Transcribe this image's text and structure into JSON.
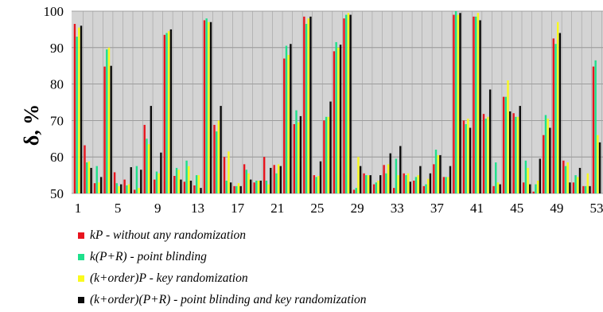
{
  "chart_data": {
    "type": "bar",
    "xlabel": "",
    "ylabel": "δ, %",
    "ylim": [
      50,
      100
    ],
    "y_ticks": [
      "50",
      "60",
      "70",
      "80",
      "90",
      "100"
    ],
    "x_tick_labels": [
      "1",
      "5",
      "9",
      "13",
      "17",
      "21",
      "25",
      "29",
      "33",
      "37",
      "41",
      "45",
      "49",
      "53"
    ],
    "x_tick_indices": [
      1,
      5,
      9,
      13,
      17,
      21,
      25,
      29,
      33,
      37,
      41,
      45,
      49,
      53
    ],
    "categories": [
      1,
      2,
      3,
      4,
      5,
      6,
      7,
      8,
      9,
      10,
      11,
      12,
      13,
      14,
      15,
      16,
      17,
      18,
      19,
      20,
      21,
      22,
      23,
      24,
      25,
      26,
      27,
      28,
      29,
      30,
      31,
      32,
      33,
      34,
      35,
      36,
      37,
      38,
      39,
      40,
      41,
      42,
      43,
      44,
      45,
      46,
      47,
      48,
      49,
      50,
      51,
      52,
      53
    ],
    "grid": true,
    "legend_position": "bottom",
    "background": "#d4d4d4",
    "series": [
      {
        "name": "kP - without any randomization",
        "color": "#e8141e",
        "values": [
          96.5,
          63.2,
          52.8,
          84.8,
          55.8,
          53.8,
          51.0,
          68.8,
          53.8,
          93.5,
          54.8,
          53.2,
          52.2,
          97.5,
          68.8,
          60.0,
          52.0,
          58.0,
          53.0,
          60.0,
          57.8,
          87.0,
          69.0,
          98.5,
          55.0,
          70.0,
          89.0,
          98.0,
          51.0,
          55.5,
          52.5,
          57.8,
          51.5,
          55.5,
          53.5,
          52.0,
          58.0,
          54.5,
          99.0,
          70.0,
          98.5,
          71.8,
          52.0,
          76.5,
          72.0,
          53.0,
          50.5,
          66.0,
          92.5,
          59.0,
          53.0,
          52.0,
          84.8
        ]
      },
      {
        "name": "k(P+R) - point blinding",
        "color": "#1ee08c",
        "values": [
          93.0,
          58.5,
          57.5,
          89.5,
          52.8,
          52.2,
          57.5,
          65.0,
          56.0,
          94.0,
          57.0,
          59.0,
          55.0,
          98.0,
          67.0,
          53.5,
          52.0,
          56.5,
          53.5,
          53.5,
          55.5,
          90.5,
          72.8,
          96.5,
          54.5,
          71.0,
          91.5,
          99.0,
          51.5,
          55.0,
          53.0,
          55.5,
          59.5,
          55.0,
          54.5,
          52.5,
          62.0,
          54.5,
          100.0,
          69.0,
          98.5,
          70.5,
          58.5,
          76.5,
          71.0,
          59.0,
          52.5,
          71.5,
          91.0,
          57.5,
          55.0,
          52.0,
          86.5
        ]
      },
      {
        "name": "(k+order)P - key randomization",
        "color": "#fafa1e",
        "values": [
          95.5,
          58.8,
          53.0,
          90.0,
          52.0,
          52.5,
          51.5,
          63.5,
          55.5,
          94.5,
          56.5,
          57.5,
          55.0,
          97.0,
          70.0,
          61.5,
          52.8,
          55.5,
          53.5,
          52.5,
          58.0,
          88.0,
          69.5,
          98.0,
          54.8,
          71.0,
          90.0,
          99.5,
          60.0,
          55.0,
          53.5,
          58.0,
          55.0,
          55.5,
          55.0,
          54.0,
          60.5,
          54.5,
          99.0,
          70.5,
          99.5,
          71.0,
          53.0,
          81.0,
          71.0,
          57.0,
          53.5,
          70.5,
          97.0,
          58.5,
          54.5,
          55.5,
          66.0
        ]
      },
      {
        "name": "(k+order)(P+R) - point blinding and key randomization",
        "color": "#0a0a0a",
        "values": [
          96.0,
          57.0,
          54.5,
          85.0,
          52.5,
          57.2,
          56.5,
          74.0,
          61.2,
          95.0,
          53.8,
          53.5,
          51.5,
          97.0,
          74.0,
          53.0,
          52.0,
          53.8,
          53.5,
          57.0,
          57.5,
          91.0,
          71.2,
          98.5,
          58.8,
          75.2,
          90.8,
          99.0,
          57.5,
          55.0,
          55.0,
          61.0,
          63.0,
          53.2,
          57.5,
          55.5,
          60.5,
          57.5,
          99.5,
          68.0,
          97.5,
          78.5,
          52.5,
          72.5,
          74.0,
          52.5,
          59.5,
          68.0,
          94.0,
          53.0,
          57.0,
          52.0,
          64.0
        ]
      }
    ]
  }
}
